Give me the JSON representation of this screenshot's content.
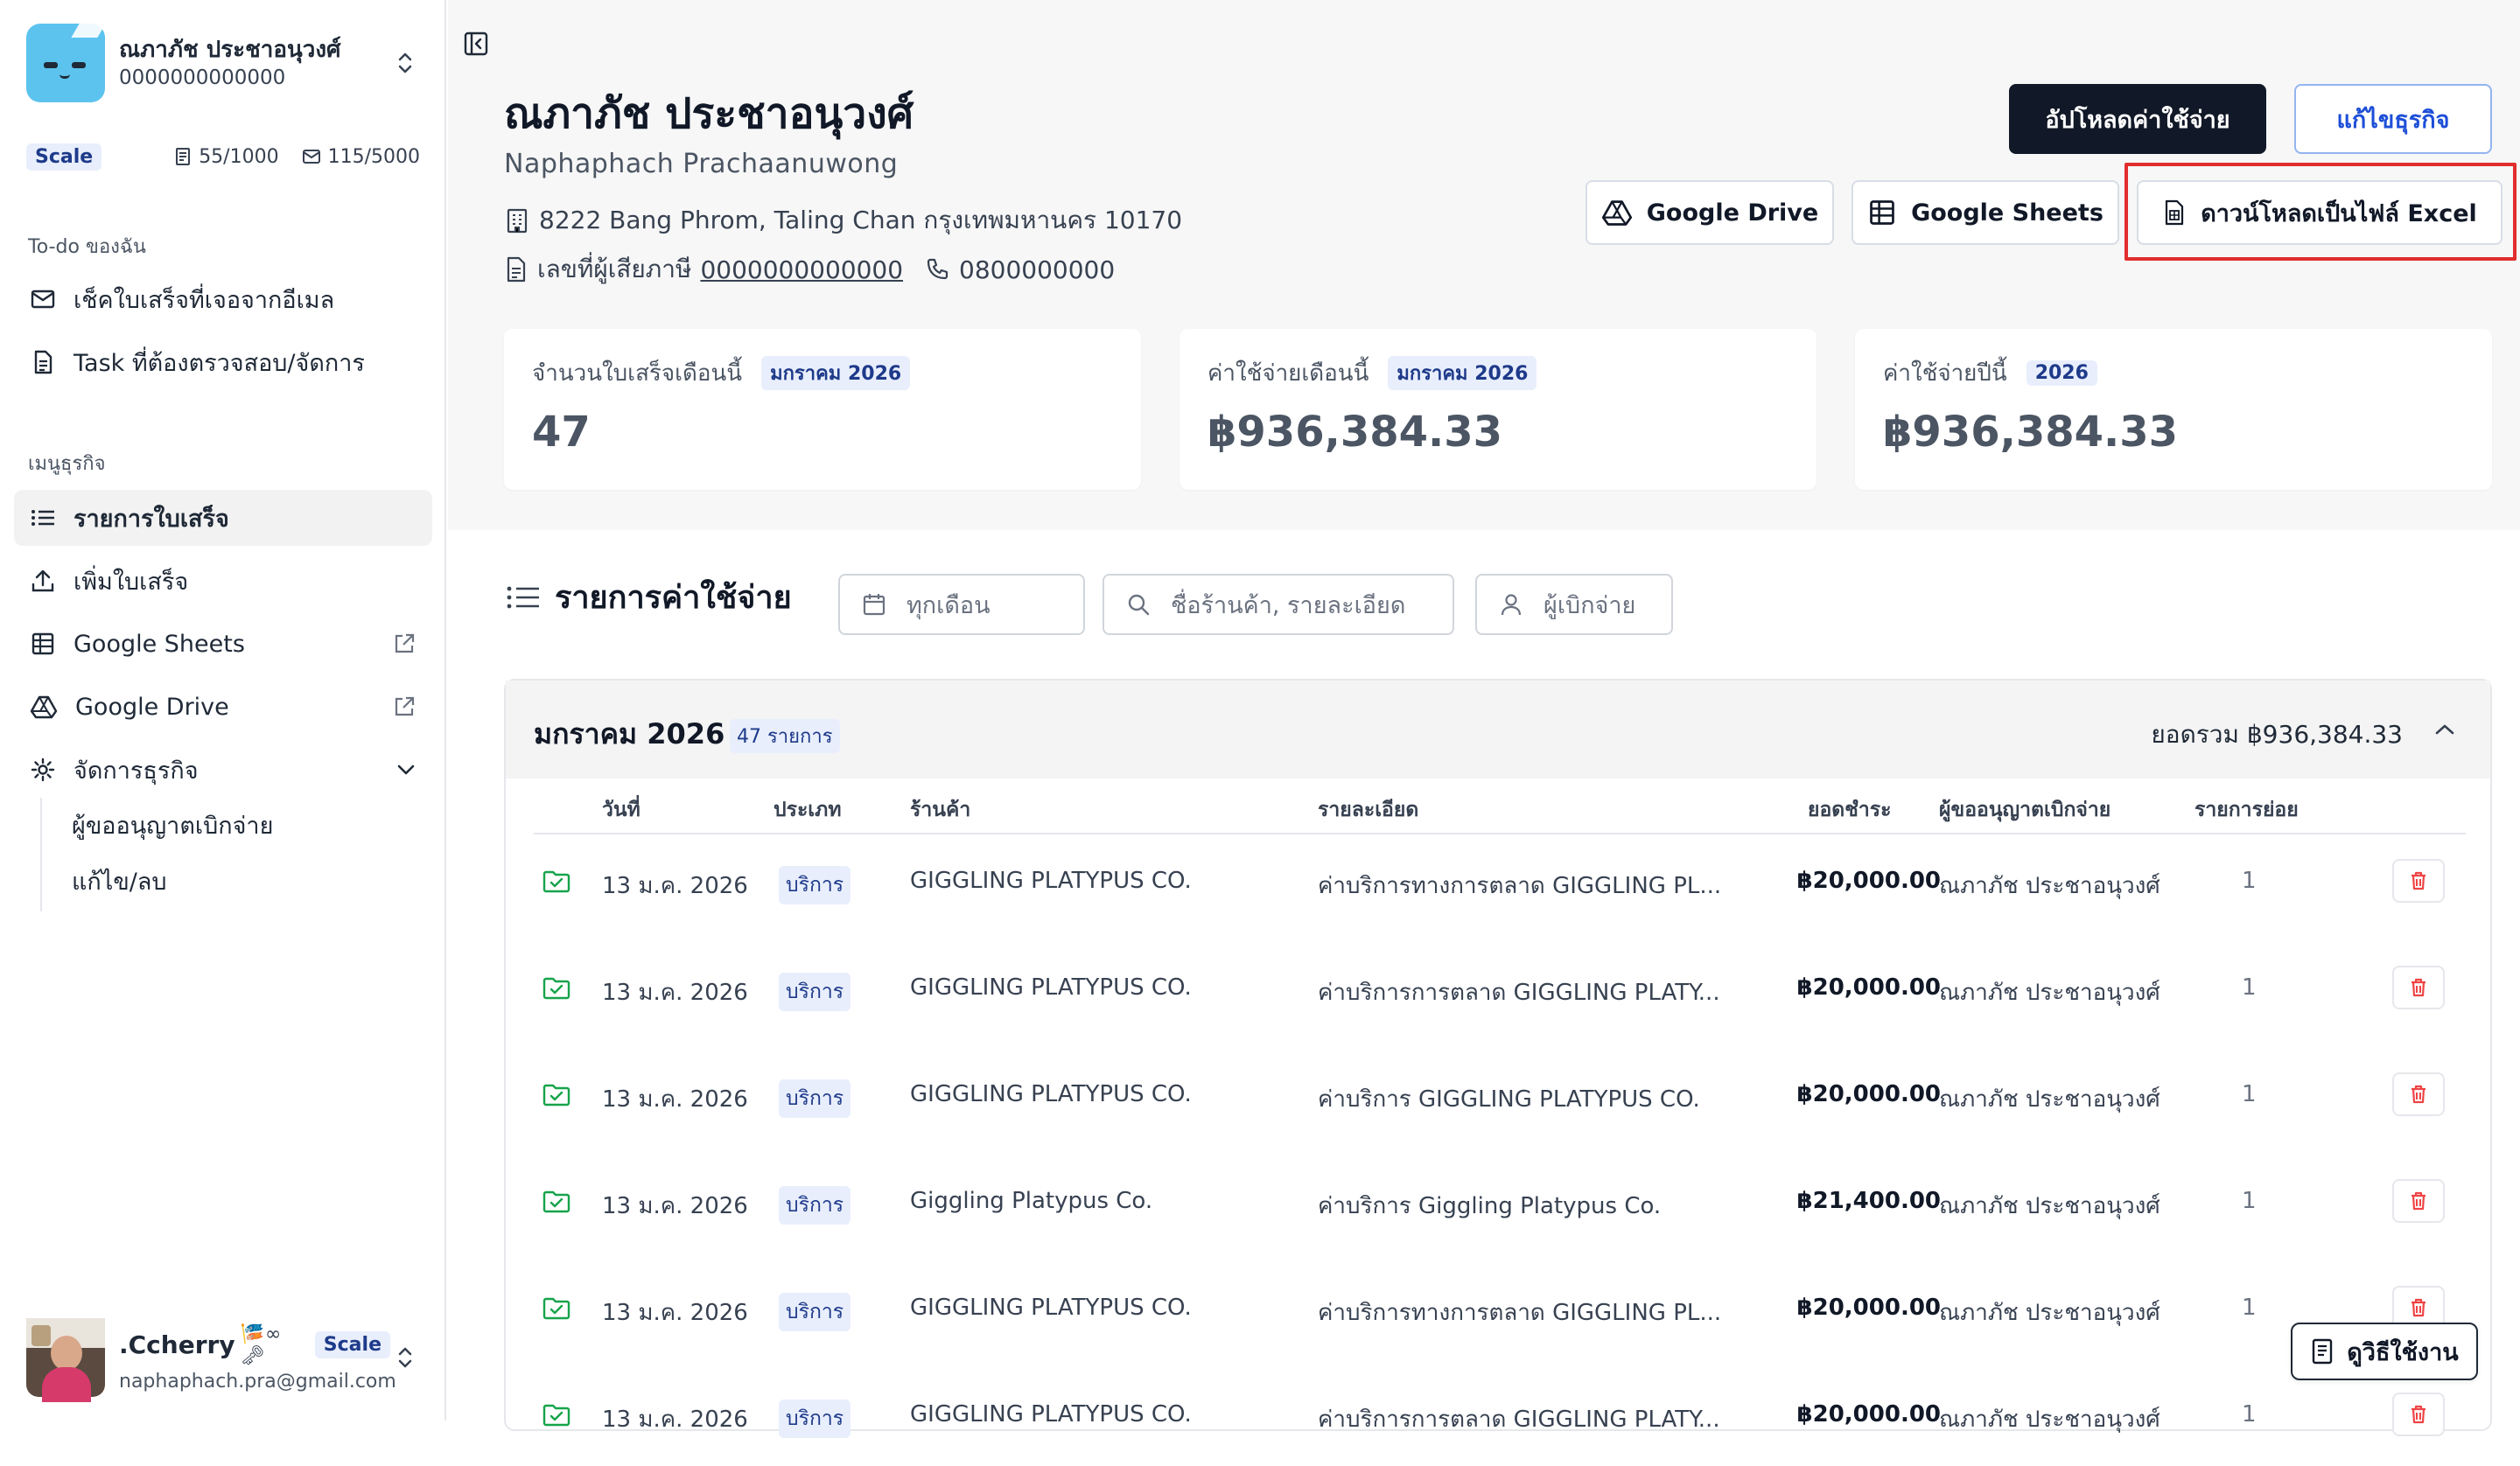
{
  "business": {
    "name": "ณภาภัช ประชาอนุวงศ์",
    "id_number": "0000000000000",
    "plan": "Scale",
    "doc_quota": "55/1000",
    "email_quota": "115/5000"
  },
  "sidebar": {
    "todo_heading": "To-do ของฉัน",
    "todo_items": [
      {
        "label": "เช็คใบเสร็จที่เจอจากอีเมล",
        "icon": "mail-icon"
      },
      {
        "label": "Task ที่ต้องตรวจสอบ/จัดการ",
        "icon": "document-icon"
      }
    ],
    "menu_heading": "เมนูธุรกิจ",
    "menu_items": [
      {
        "label": "รายการใบเสร็จ",
        "icon": "list-icon",
        "active": true
      },
      {
        "label": "เพิ่มใบเสร็จ",
        "icon": "upload-icon"
      },
      {
        "label": "Google Sheets",
        "icon": "sheet-icon",
        "external": true
      },
      {
        "label": "Google Drive",
        "icon": "drive-icon",
        "external": true
      },
      {
        "label": "จัดการธุรกิจ",
        "icon": "gear-icon",
        "expanded": true
      }
    ],
    "sub_items": [
      "ผู้ขออนุญาตเบิกจ่าย",
      "แก้ไข/ลบ"
    ]
  },
  "user": {
    "name": ".Ccherry",
    "emoji": "🎏∞🗝",
    "plan": "Scale",
    "email": "naphaphach.pra@gmail.com"
  },
  "header": {
    "title": "ณภาภัช ประชาอนุวงศ์",
    "subtitle": "Naphaphach Prachaanuwong",
    "address": "8222 Bang Phrom, Taling Chan กรุงเทพมหานคร 10170",
    "tax_label": "เลขที่ผู้เสียภาษี",
    "tax_id": "0000000000000",
    "phone": "0800000000"
  },
  "actions": {
    "upload_expense": "อัปโหลดค่าใช้จ่าย",
    "edit_business": "แก้ไขธุรกิจ",
    "google_drive": "Google Drive",
    "google_sheets": "Google Sheets",
    "download_excel": "ดาวน์โหลดเป็นไฟล์ Excel"
  },
  "stats": [
    {
      "label": "จำนวนใบเสร็จเดือนนี้",
      "period": "มกราคม 2026",
      "value": "47"
    },
    {
      "label": "ค่าใช้จ่ายเดือนนี้",
      "period": "มกราคม 2026",
      "value": "฿936,384.33"
    },
    {
      "label": "ค่าใช้จ่ายปีนี้",
      "period": "2026",
      "value": "฿936,384.33"
    }
  ],
  "list": {
    "title": "รายการค่าใช้จ่าย",
    "month_filter": "ทุกเดือน",
    "search_placeholder": "ชื่อร้านค้า, รายละเอียด",
    "payer_filter": "ผู้เบิกจ่าย"
  },
  "group": {
    "title": "มกราคม 2026",
    "count": "47 รายการ",
    "total": "ยอดรวม ฿936,384.33"
  },
  "table": {
    "columns": [
      "วันที่",
      "ประเภท",
      "ร้านค้า",
      "รายละเอียด",
      "ยอดชำระ",
      "ผู้ขออนุญาตเบิกจ่าย",
      "รายการย่อย"
    ],
    "rows": [
      {
        "date": "13 ม.ค. 2026",
        "type": "บริการ",
        "vendor": "GIGGLING PLATYPUS CO.",
        "detail": "ค่าบริการทางการตลาด GIGGLING PL...",
        "amount": "฿20,000.00",
        "payer": "ณภาภัช ประชาอนุวงศ์",
        "items": "1"
      },
      {
        "date": "13 ม.ค. 2026",
        "type": "บริการ",
        "vendor": "GIGGLING PLATYPUS CO.",
        "detail": "ค่าบริการการตลาด GIGGLING PLATY...",
        "amount": "฿20,000.00",
        "payer": "ณภาภัช ประชาอนุวงศ์",
        "items": "1"
      },
      {
        "date": "13 ม.ค. 2026",
        "type": "บริการ",
        "vendor": "GIGGLING PLATYPUS CO.",
        "detail": "ค่าบริการ GIGGLING PLATYPUS CO.",
        "amount": "฿20,000.00",
        "payer": "ณภาภัช ประชาอนุวงศ์",
        "items": "1"
      },
      {
        "date": "13 ม.ค. 2026",
        "type": "บริการ",
        "vendor": "Giggling Platypus Co.",
        "detail": "ค่าบริการ Giggling Platypus Co.",
        "amount": "฿21,400.00",
        "payer": "ณภาภัช ประชาอนุวงศ์",
        "items": "1"
      },
      {
        "date": "13 ม.ค. 2026",
        "type": "บริการ",
        "vendor": "GIGGLING PLATYPUS CO.",
        "detail": "ค่าบริการทางการตลาด GIGGLING PL...",
        "amount": "฿20,000.00",
        "payer": "ณภาภัช ประชาอนุวงศ์",
        "items": "1"
      },
      {
        "date": "13 ม.ค. 2026",
        "type": "บริการ",
        "vendor": "GIGGLING PLATYPUS CO.",
        "detail": "ค่าบริการการตลาด GIGGLING PLATY...",
        "amount": "฿20,000.00",
        "payer": "ณภาภัช ประชาอนุวงศ์",
        "items": "1"
      }
    ]
  },
  "help": {
    "label": "ดูวิธีใช้งาน"
  },
  "colors": {
    "primary_dark": "#111827",
    "accent_blue": "#1d4ed8",
    "badge_bg": "#e8eefc",
    "highlight_red": "#e12d2d",
    "success_green": "#16a34a",
    "danger_red": "#ef4444"
  }
}
